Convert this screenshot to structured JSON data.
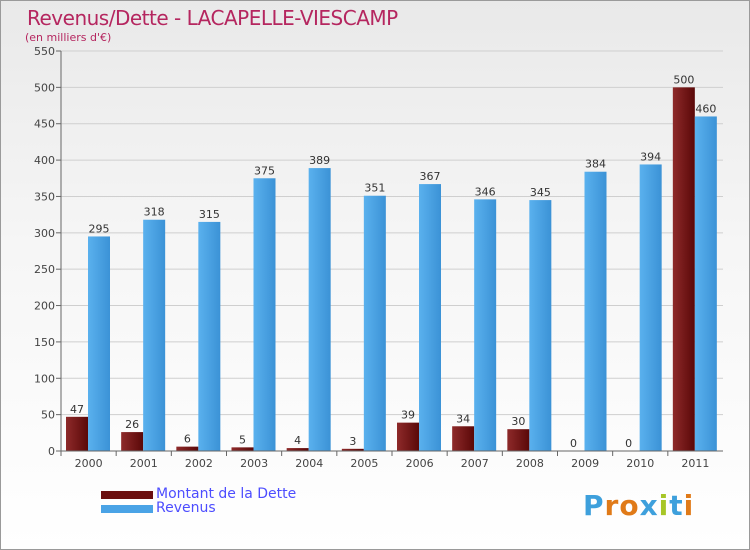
{
  "header": {
    "title": "Revenus/Dette - LACAPELLE-VIESCAMP",
    "subtitle": "(en milliers d'€)"
  },
  "chart_data": {
    "type": "bar",
    "title": "Revenus/Dette - LACAPELLE-VIESCAMP",
    "ylabel": "(en milliers d'€)",
    "xlabel": "",
    "categories": [
      "2000",
      "2001",
      "2002",
      "2003",
      "2004",
      "2005",
      "2006",
      "2007",
      "2008",
      "2009",
      "2010",
      "2011"
    ],
    "series": [
      {
        "name": "Montant de la Dette",
        "color": "#7a1616",
        "values": [
          47,
          26,
          6,
          5,
          4,
          3,
          39,
          34,
          30,
          0,
          0,
          500
        ]
      },
      {
        "name": "Revenus",
        "color": "#4aa3e6",
        "values": [
          295,
          318,
          315,
          375,
          389,
          351,
          367,
          346,
          345,
          384,
          394,
          460
        ]
      }
    ],
    "ylim": [
      0,
      550
    ],
    "yticks": [
      0,
      50,
      100,
      150,
      200,
      250,
      300,
      350,
      400,
      450,
      500,
      550
    ],
    "grid": true,
    "legend_position": "bottom-left"
  },
  "legend": {
    "items": [
      {
        "label": "Montant de la Dette",
        "color": "#6b0f0f"
      },
      {
        "label": "Revenus",
        "color": "#4aa3e6"
      }
    ]
  },
  "logo": {
    "text": "Proxiti",
    "letter_colors": [
      "#3ea0dc",
      "#e07a18",
      "#e07a18",
      "#3ea0dc",
      "#a7c627",
      "#3ea0dc",
      "#e07a18"
    ]
  }
}
